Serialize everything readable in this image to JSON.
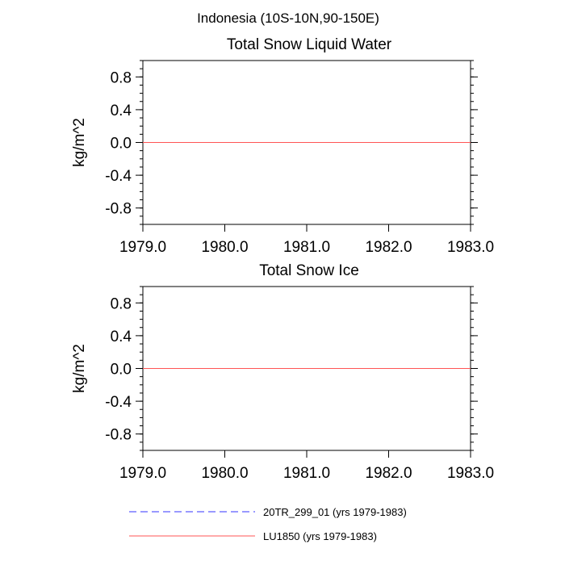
{
  "figure_title": "Indonesia (10S-10N,90-150E)",
  "chart_data": [
    {
      "type": "line",
      "title": "Total Snow Liquid Water",
      "xlabel": "",
      "ylabel": "kg/m^2",
      "xlim": [
        1979.0,
        1983.0
      ],
      "ylim": [
        -1.0,
        1.0
      ],
      "xticks": [
        1979.0,
        1980.0,
        1981.0,
        1982.0,
        1983.0
      ],
      "xtick_labels": [
        "1979.0",
        "1980.0",
        "1981.0",
        "1982.0",
        "1983.0"
      ],
      "yticks": [
        0.8,
        0.4,
        0.0,
        -0.4,
        -0.8
      ],
      "ytick_labels": [
        "0.8",
        "0.4",
        "0.0",
        "-0.4",
        "-0.8"
      ],
      "x": [
        1979.0,
        1983.0
      ],
      "series": [
        {
          "name": "20TR_299_01 (yrs 1979-1983)",
          "values": [
            0.0,
            0.0
          ],
          "color": "#3333ff",
          "style": "dashed"
        },
        {
          "name": "LU1850 (yrs 1979-1983)",
          "values": [
            0.0,
            0.0
          ],
          "color": "#ff5555",
          "style": "solid"
        }
      ],
      "grid": false
    },
    {
      "type": "line",
      "title": "Total Snow Ice",
      "xlabel": "",
      "ylabel": "kg/m^2",
      "xlim": [
        1979.0,
        1983.0
      ],
      "ylim": [
        -1.0,
        1.0
      ],
      "xticks": [
        1979.0,
        1980.0,
        1981.0,
        1982.0,
        1983.0
      ],
      "xtick_labels": [
        "1979.0",
        "1980.0",
        "1981.0",
        "1982.0",
        "1983.0"
      ],
      "yticks": [
        0.8,
        0.4,
        0.0,
        -0.4,
        -0.8
      ],
      "ytick_labels": [
        "0.8",
        "0.4",
        "0.0",
        "-0.4",
        "-0.8"
      ],
      "x": [
        1979.0,
        1983.0
      ],
      "series": [
        {
          "name": "20TR_299_01 (yrs 1979-1983)",
          "values": [
            0.0,
            0.0
          ],
          "color": "#3333ff",
          "style": "dashed"
        },
        {
          "name": "LU1850 (yrs 1979-1983)",
          "values": [
            0.0,
            0.0
          ],
          "color": "#ff5555",
          "style": "solid"
        }
      ],
      "grid": false
    }
  ],
  "legend": {
    "placement": "bottom",
    "entries": [
      {
        "label": "20TR_299_01 (yrs 1979-1983)",
        "color": "#3333ff",
        "style": "dashed"
      },
      {
        "label": "LU1850 (yrs 1979-1983)",
        "color": "#ff5555",
        "style": "solid"
      }
    ]
  }
}
